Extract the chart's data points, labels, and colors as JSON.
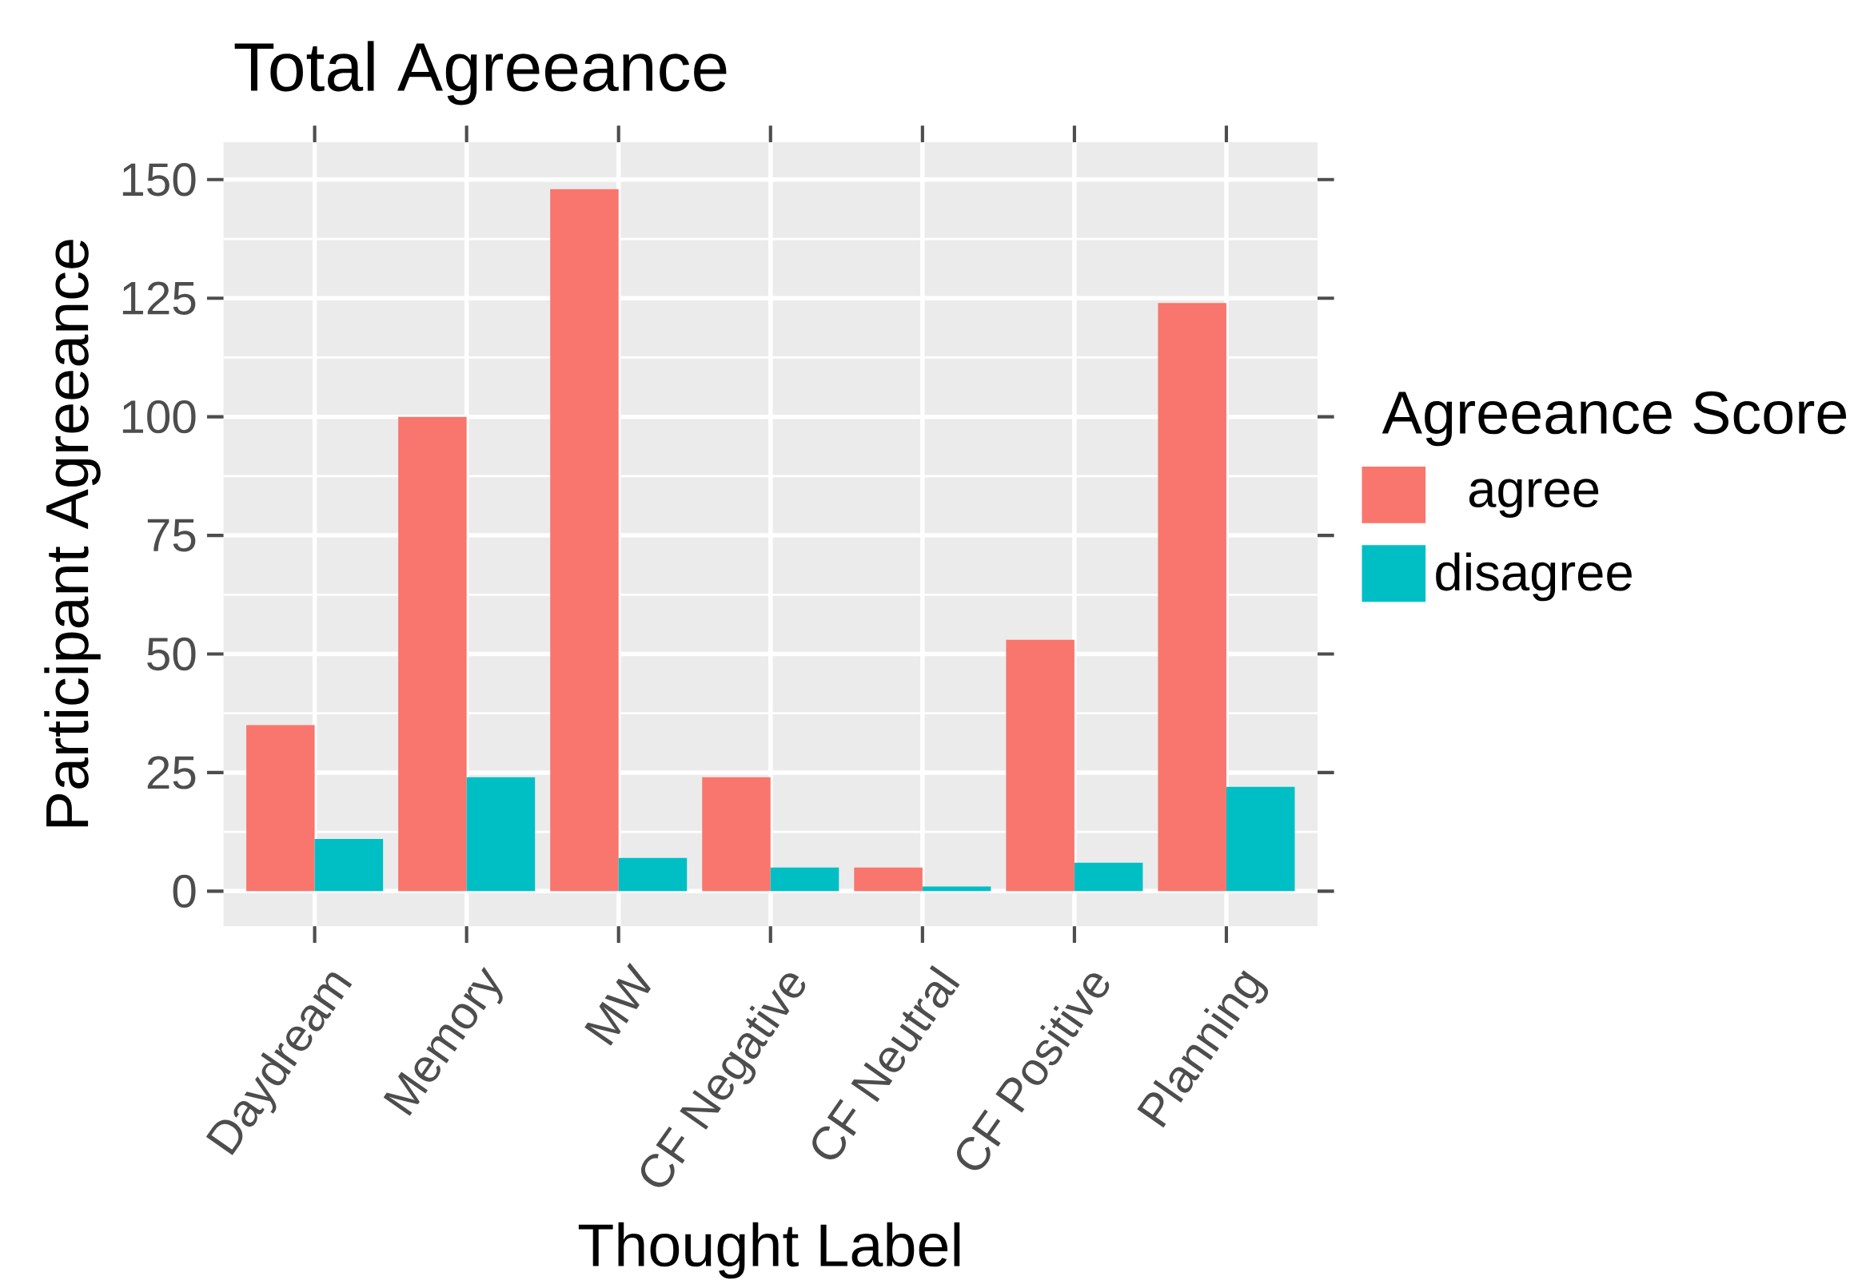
{
  "chart_data": {
    "type": "bar",
    "title": "Total Agreeance",
    "xlabel": "Thought Label",
    "ylabel": "Participant Agreeance",
    "legend_title": "Agreeance Score",
    "categories": [
      "Daydream",
      "Memory",
      "MW",
      "CF Negative",
      "CF Neutral",
      "CF Positive",
      "Planning"
    ],
    "series": [
      {
        "name": "agree",
        "color": "#f8766d",
        "values": [
          35,
          100,
          148,
          24,
          5,
          53,
          124
        ]
      },
      {
        "name": "disagree",
        "color": "#00bfc4",
        "values": [
          11,
          24,
          7,
          5,
          1,
          6,
          22
        ]
      }
    ],
    "ylim": [
      -7.4,
      157.9
    ],
    "yticks": [
      0,
      25,
      50,
      75,
      100,
      125,
      150
    ],
    "grid": true,
    "legend": "right"
  }
}
